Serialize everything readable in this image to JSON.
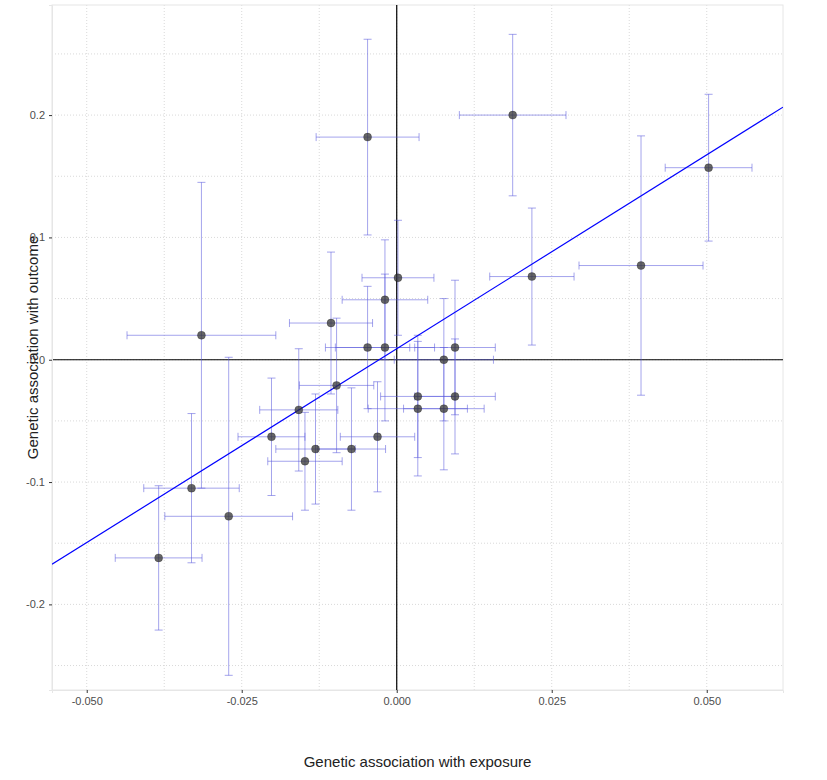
{
  "chart_data": {
    "type": "scatter",
    "x_label": "Genetic association with exposure",
    "y_label": "Genetic association with outcome",
    "x": [
      0.0503,
      0.0394,
      0.0218,
      0.0187,
      -0.0047,
      0.0002,
      -0.0019,
      -0.0106,
      -0.0047,
      -0.0019,
      -0.0315,
      -0.0097,
      -0.0158,
      -0.0202,
      -0.0131,
      -0.0148,
      -0.0073,
      -0.0031,
      -0.0331,
      -0.0271,
      -0.0384,
      0.0076,
      0.0094,
      0.0034,
      0.0034,
      0.0076,
      0.0094
    ],
    "y": [
      0.157,
      0.077,
      0.068,
      0.2,
      0.182,
      0.067,
      0.049,
      0.03,
      0.01,
      0.01,
      0.02,
      -0.021,
      -0.041,
      -0.063,
      -0.073,
      -0.083,
      -0.073,
      -0.063,
      -0.105,
      -0.128,
      -0.162,
      0.0,
      0.01,
      -0.03,
      -0.04,
      -0.04,
      -0.03
    ],
    "x_err": [
      0.007,
      0.01,
      0.0068,
      0.0086,
      0.0083,
      0.0058,
      0.0069,
      0.0067,
      0.0068,
      0.008,
      0.012,
      0.006,
      0.0063,
      0.0054,
      0.0064,
      0.006,
      0.0055,
      0.006,
      0.0077,
      0.0103,
      0.007,
      0.008,
      0.0065,
      0.006,
      0.008,
      0.0065,
      0.0065
    ],
    "y_err": [
      0.06,
      0.106,
      0.056,
      0.066,
      0.08,
      0.047,
      0.049,
      0.058,
      0.05,
      0.06,
      0.125,
      0.055,
      0.05,
      0.048,
      0.045,
      0.04,
      0.05,
      0.045,
      0.061,
      0.13,
      0.059,
      0.05,
      0.055,
      0.05,
      0.055,
      0.05,
      0.047
    ],
    "color": "#333333",
    "fit_line": {
      "slope": 3.17,
      "intercept": 0.009,
      "color": "#0000ff"
    },
    "hline": 0,
    "vline": 0,
    "xlim": [
      -0.0556,
      0.0623
    ],
    "ylim": [
      -0.27,
      0.29
    ],
    "xticks": [
      {
        "value": -0.05,
        "label": "-0.050"
      },
      {
        "value": -0.025,
        "label": "-0.025"
      },
      {
        "value": 0,
        "label": "0.000"
      },
      {
        "value": 0.025,
        "label": "0.025"
      },
      {
        "value": 0.05,
        "label": "0.050"
      }
    ],
    "yticks": [
      -0.2,
      -0.1,
      {
        "value": 0,
        "label": "0.0"
      },
      0.1,
      0.2
    ],
    "minor_xticks": [
      -0.0375,
      -0.0125,
      0.0125,
      0.0375
    ],
    "minor_yticks": [
      -0.25,
      -0.15,
      -0.05,
      0.05,
      0.15,
      0.25
    ],
    "grid": true
  }
}
